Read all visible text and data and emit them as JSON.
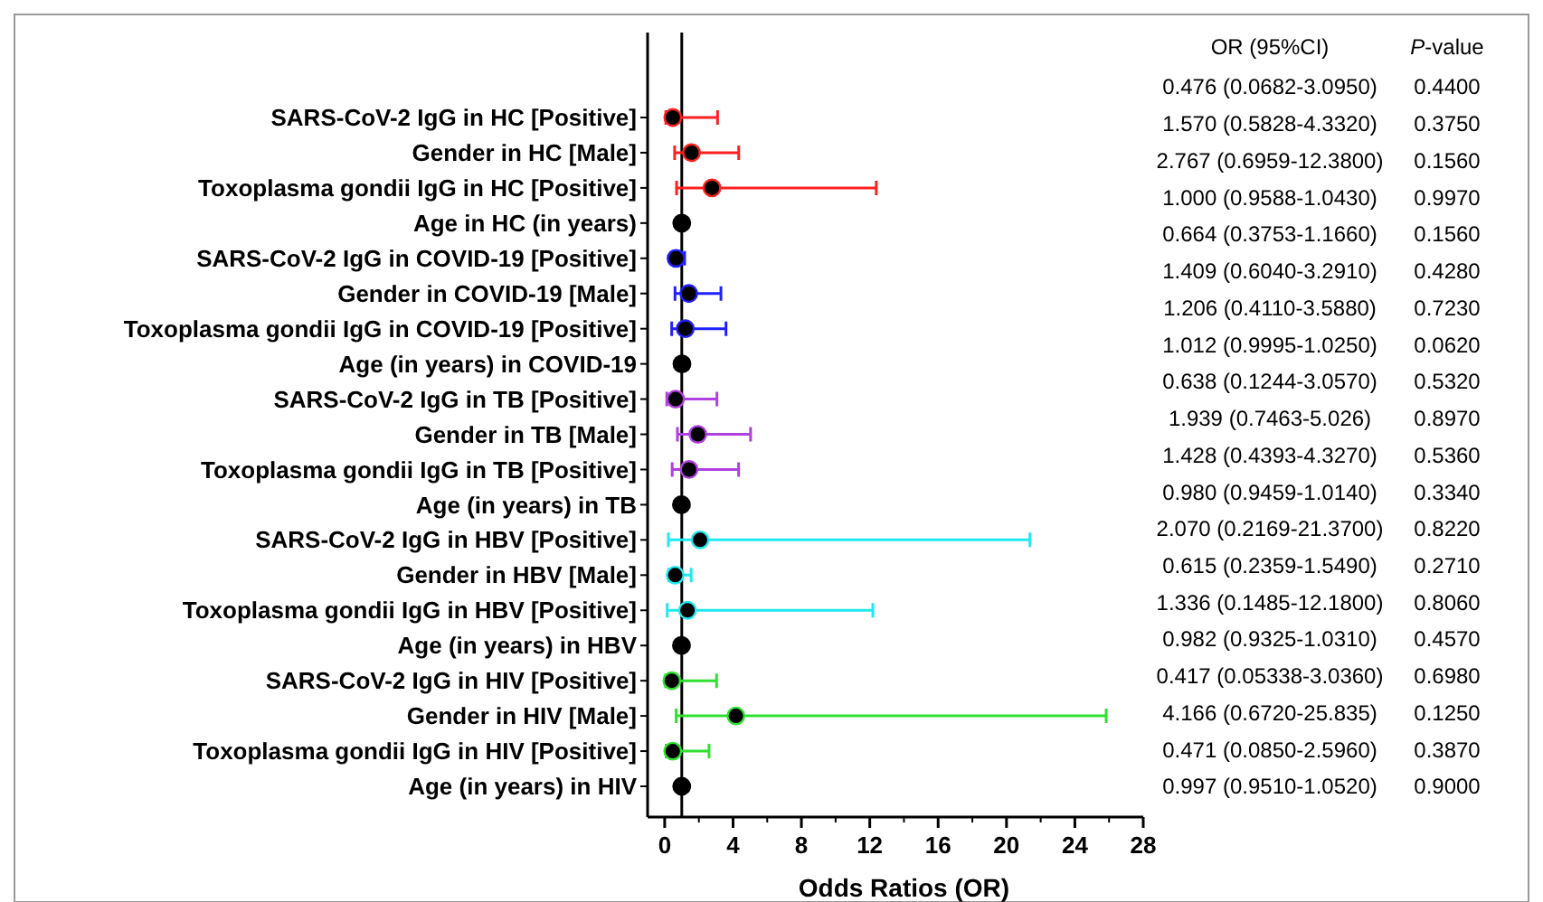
{
  "chart_data": {
    "type": "scatter",
    "xlabel": "Odds Ratios (OR)",
    "categories": [
      "SARS-CoV-2 IgG in HC [Positive]",
      "Gender in HC [Male]",
      "Toxoplasma gondii IgG in HC [Positive]",
      "Age in HC (in years)",
      "SARS-CoV-2 IgG in COVID-19 [Positive]",
      "Gender in COVID-19 [Male]",
      "Toxoplasma gondii IgG in COVID-19 [Positive]",
      "Age (in years) in COVID-19",
      "SARS-CoV-2 IgG in TB [Positive]",
      "Gender in TB [Male]",
      "Toxoplasma gondii IgG in TB [Positive]",
      "Age (in years) in TB",
      "SARS-CoV-2 IgG in HBV [Positive]",
      "Gender in HBV [Male]",
      "Toxoplasma gondii IgG in HBV [Positive]",
      "Age (in years) in HBV",
      "SARS-CoV-2 IgG in HIV [Positive]",
      "Gender in HIV [Male]",
      "Toxoplasma gondii IgG in HIV [Positive]",
      "Age (in years) in HIV"
    ],
    "values": [
      0.476,
      1.57,
      2.767,
      1.0,
      0.664,
      1.409,
      1.206,
      1.012,
      0.638,
      1.939,
      1.428,
      0.98,
      2.07,
      0.615,
      1.336,
      0.982,
      0.417,
      4.166,
      0.471,
      0.997
    ],
    "errors": [
      [
        0.0682,
        3.095
      ],
      [
        0.5828,
        4.332
      ],
      [
        0.6959,
        12.38
      ],
      [
        0.9588,
        1.043
      ],
      [
        0.3753,
        1.166
      ],
      [
        0.604,
        3.291
      ],
      [
        0.411,
        3.588
      ],
      [
        0.9995,
        1.025
      ],
      [
        0.1244,
        3.057
      ],
      [
        0.7463,
        5.026
      ],
      [
        0.4393,
        4.327
      ],
      [
        0.9459,
        1.014
      ],
      [
        0.2169,
        21.37
      ],
      [
        0.2359,
        1.549
      ],
      [
        0.1485,
        12.18
      ],
      [
        0.9325,
        1.031
      ],
      [
        0.05338,
        3.036
      ],
      [
        0.672,
        25.835
      ],
      [
        0.085,
        2.596
      ],
      [
        0.951,
        1.052
      ]
    ],
    "colors": [
      "#ff2020",
      "#ff2020",
      "#ff2020",
      "#000000",
      "#2020ff",
      "#2020ff",
      "#2020ff",
      "#000000",
      "#b040e0",
      "#b040e0",
      "#b040e0",
      "#000000",
      "#20e8f0",
      "#20e8f0",
      "#20e8f0",
      "#000000",
      "#30e030",
      "#30e030",
      "#30e030",
      "#000000"
    ],
    "annotations": [
      "OR (95%CI)",
      "P-value",
      "0.476 (0.0682-3.0950)",
      "1.570 (0.5828-4.3320)",
      "2.767 (0.6959-12.3800)",
      "1.000 (0.9588-1.0430)",
      "0.664 (0.3753-1.1660)",
      "1.409 (0.6040-3.2910)",
      "1.206 (0.4110-3.5880)",
      "1.012 (0.9995-1.0250)",
      "0.638 (0.1244-3.0570)",
      "1.939 (0.7463-5.026)",
      "1.428 (0.4393-4.3270)",
      "0.980 (0.9459-1.0140)",
      "2.070 (0.2169-21.3700)",
      "0.615 (0.2359-1.5490)",
      "1.336 (0.1485-12.1800)",
      "0.982 (0.9325-1.0310)",
      "0.417 (0.05338-3.0360)",
      "4.166 (0.6720-25.835)",
      "0.471 (0.0850-2.5960)",
      "0.997 (0.9510-1.0520)",
      "0.4400",
      "0.3750",
      "0.1560",
      "0.9970",
      "0.1560",
      "0.4280",
      "0.7230",
      "0.0620",
      "0.5320",
      "0.8970",
      "0.5360",
      "0.3340",
      "0.8220",
      "0.2710",
      "0.8060",
      "0.4570",
      "0.6980",
      "0.1250",
      "0.3870",
      "0.9000"
    ],
    "xlim": [
      -1,
      28
    ],
    "xticks": [
      0,
      4,
      8,
      12,
      16,
      20,
      24,
      28
    ],
    "ref_lines": [
      {
        "axis": "x",
        "value": 1,
        "color": "#000000"
      }
    ],
    "marker": "circle",
    "grid": false,
    "orientation": "horizontal"
  }
}
